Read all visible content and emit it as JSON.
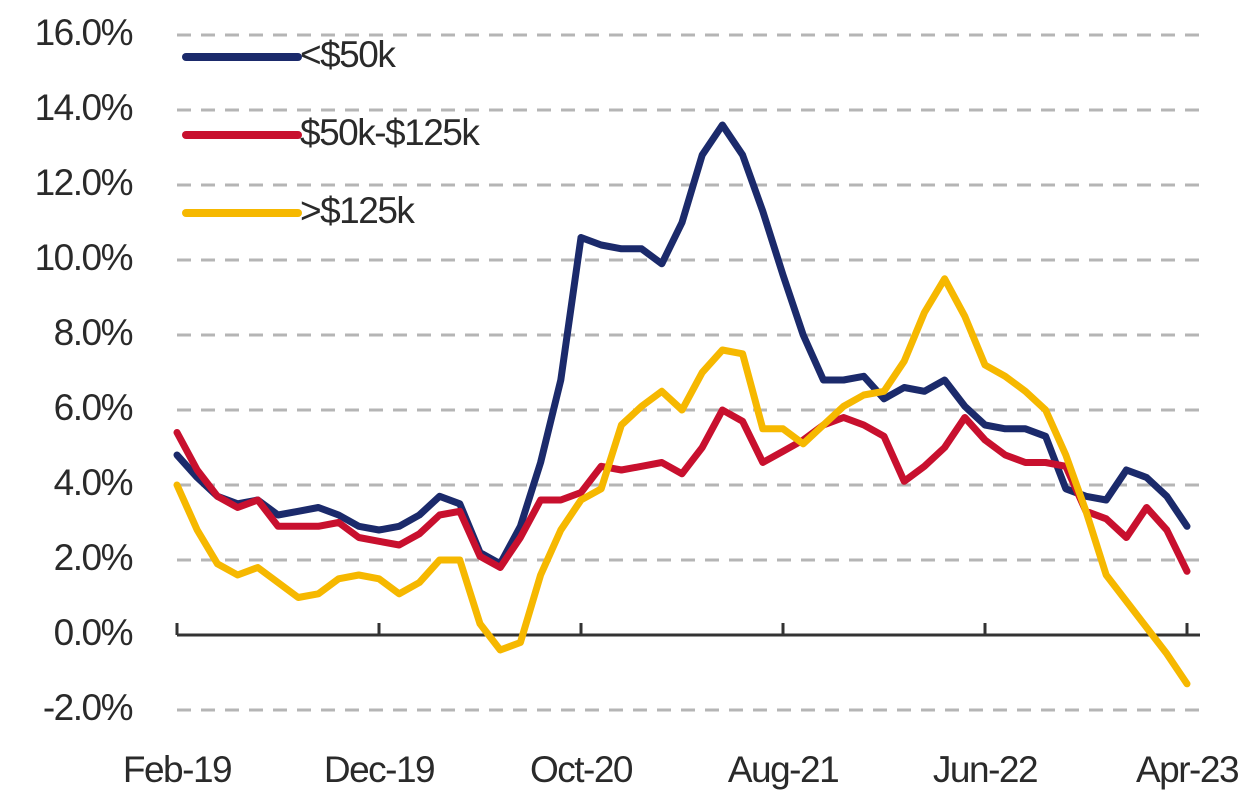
{
  "chart_data": {
    "type": "line",
    "categories": [
      "Feb-19",
      null,
      null,
      null,
      null,
      null,
      null,
      null,
      null,
      null,
      "Dec-19",
      null,
      null,
      null,
      null,
      null,
      null,
      null,
      null,
      null,
      "Oct-20",
      null,
      null,
      null,
      null,
      null,
      null,
      null,
      null,
      null,
      "Aug-21",
      null,
      null,
      null,
      null,
      null,
      null,
      null,
      null,
      null,
      "Jun-22",
      null,
      null,
      null,
      null,
      null,
      null,
      null,
      null,
      null,
      "Apr-23"
    ],
    "series": [
      {
        "name": "<$50k",
        "color": "#1b2a6b",
        "values": [
          4.8,
          4.2,
          3.7,
          3.5,
          3.6,
          3.2,
          3.3,
          3.4,
          3.2,
          2.9,
          2.8,
          2.9,
          3.2,
          3.7,
          3.5,
          2.2,
          1.9,
          2.9,
          4.6,
          6.8,
          10.6,
          10.4,
          10.3,
          10.3,
          9.9,
          11.0,
          12.8,
          13.6,
          12.8,
          11.3,
          9.6,
          8.0,
          6.8,
          6.8,
          6.9,
          6.3,
          6.6,
          6.5,
          6.8,
          6.1,
          5.6,
          5.5,
          5.5,
          5.3,
          3.9,
          3.7,
          3.6,
          4.4,
          4.2,
          3.7,
          2.9
        ]
      },
      {
        "name": "$50k-$125k",
        "color": "#c8102e",
        "values": [
          5.4,
          4.4,
          3.7,
          3.4,
          3.6,
          2.9,
          2.9,
          2.9,
          3.0,
          2.6,
          2.5,
          2.4,
          2.7,
          3.2,
          3.3,
          2.1,
          1.8,
          2.6,
          3.6,
          3.6,
          3.8,
          4.5,
          4.4,
          4.5,
          4.6,
          4.3,
          5.0,
          6.0,
          5.7,
          4.6,
          4.9,
          5.2,
          5.6,
          5.8,
          5.6,
          5.3,
          4.1,
          4.5,
          5.0,
          5.8,
          5.2,
          4.8,
          4.6,
          4.6,
          4.5,
          3.3,
          3.1,
          2.6,
          3.4,
          2.8,
          1.7
        ]
      },
      {
        "name": ">$125k",
        "color": "#f6b800",
        "values": [
          4.0,
          2.8,
          1.9,
          1.6,
          1.8,
          1.4,
          1.0,
          1.1,
          1.5,
          1.6,
          1.5,
          1.1,
          1.4,
          2.0,
          2.0,
          0.3,
          -0.4,
          -0.2,
          1.6,
          2.8,
          3.6,
          3.9,
          5.6,
          6.1,
          6.5,
          6.0,
          7.0,
          7.6,
          7.5,
          5.5,
          5.5,
          5.1,
          5.6,
          6.1,
          6.4,
          6.5,
          7.3,
          8.6,
          9.5,
          8.5,
          7.2,
          6.9,
          6.5,
          6.0,
          4.8,
          3.3,
          1.6,
          0.9,
          0.2,
          -0.5,
          -1.3
        ]
      }
    ],
    "ylim": [
      -2,
      16
    ],
    "yticks": [
      {
        "value": -2,
        "label": "-2.0%"
      },
      {
        "value": 0,
        "label": "0.0%"
      },
      {
        "value": 2,
        "label": "2.0%"
      },
      {
        "value": 4,
        "label": "4.0%"
      },
      {
        "value": 6,
        "label": "6.0%"
      },
      {
        "value": 8,
        "label": "8.0%"
      },
      {
        "value": 10,
        "label": "10.0%"
      },
      {
        "value": 12,
        "label": "12.0%"
      },
      {
        "value": 14,
        "label": "14.0%"
      },
      {
        "value": 16,
        "label": "16.0%"
      }
    ],
    "grid": true,
    "legend": "top-left"
  }
}
